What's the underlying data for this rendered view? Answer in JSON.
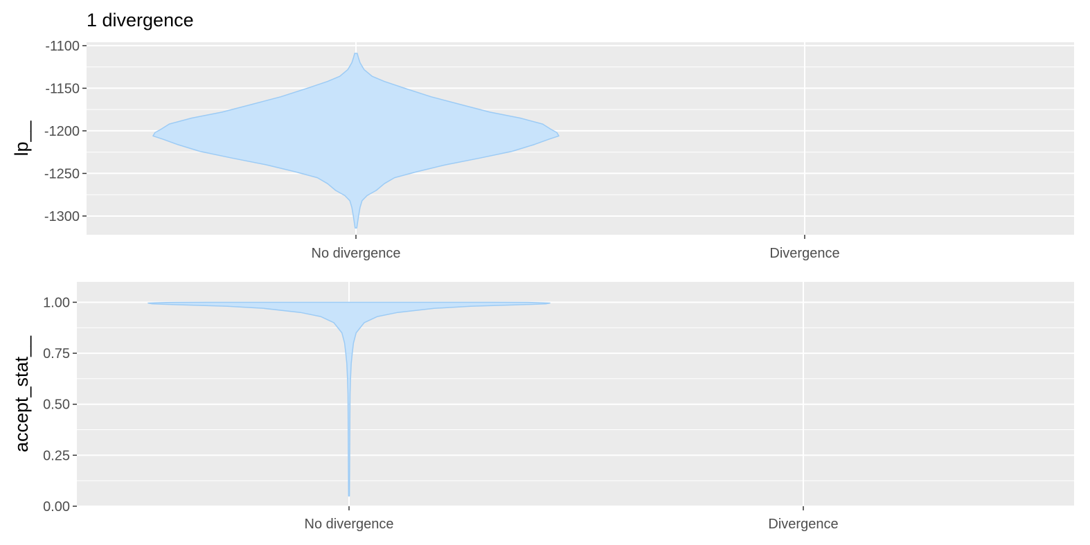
{
  "chart_data": [
    {
      "type": "violin",
      "title": "1 divergence",
      "ylabel": "lp__",
      "xlabel": "",
      "categories": [
        "No divergence",
        "Divergence"
      ],
      "ylim": [
        -1322,
        -1096
      ],
      "yticks": [
        -1100,
        -1150,
        -1200,
        -1250,
        -1300
      ],
      "ytick_labels": [
        "-1100",
        "-1150",
        "-1200",
        "-1250",
        "-1300"
      ],
      "grid": true,
      "fill_color": "#c8e3fb",
      "outline_color": "#9ccbf5",
      "panel_color": "#ebebeb",
      "grid_color": "#ffffff",
      "violins": [
        {
          "category": "No divergence",
          "profile": [
            [
              -1314,
              0.004
            ],
            [
              -1308,
              0.008
            ],
            [
              -1300,
              0.013
            ],
            [
              -1290,
              0.02
            ],
            [
              -1282,
              0.03
            ],
            [
              -1276,
              0.055
            ],
            [
              -1270,
              0.1
            ],
            [
              -1262,
              0.14
            ],
            [
              -1255,
              0.19
            ],
            [
              -1248,
              0.3
            ],
            [
              -1240,
              0.44
            ],
            [
              -1232,
              0.61
            ],
            [
              -1224,
              0.77
            ],
            [
              -1216,
              0.88
            ],
            [
              -1210,
              0.95
            ],
            [
              -1206,
              1.0
            ],
            [
              -1202,
              0.99
            ],
            [
              -1198,
              0.96
            ],
            [
              -1192,
              0.92
            ],
            [
              -1185,
              0.81
            ],
            [
              -1178,
              0.66
            ],
            [
              -1170,
              0.53
            ],
            [
              -1160,
              0.37
            ],
            [
              -1150,
              0.24
            ],
            [
              -1142,
              0.14
            ],
            [
              -1136,
              0.08
            ],
            [
              -1128,
              0.04
            ],
            [
              -1120,
              0.02
            ],
            [
              -1114,
              0.012
            ],
            [
              -1109,
              0.006
            ]
          ]
        }
      ]
    },
    {
      "type": "violin",
      "title": "",
      "ylabel": "accept_stat__",
      "xlabel": "",
      "categories": [
        "No divergence",
        "Divergence"
      ],
      "ylim": [
        0.0,
        1.1
      ],
      "yticks": [
        1.0,
        0.75,
        0.5,
        0.25,
        0.0
      ],
      "ytick_labels": [
        "1.00",
        "0.75",
        "0.50",
        "0.25",
        "0.00"
      ],
      "grid": true,
      "fill_color": "#c8e3fb",
      "outline_color": "#9ccbf5",
      "panel_color": "#ebebeb",
      "grid_color": "#ffffff",
      "violins": [
        {
          "category": "No divergence",
          "profile": [
            [
              0.05,
              0.002
            ],
            [
              0.2,
              0.003
            ],
            [
              0.4,
              0.004
            ],
            [
              0.55,
              0.005
            ],
            [
              0.62,
              0.007
            ],
            [
              0.7,
              0.011
            ],
            [
              0.75,
              0.016
            ],
            [
              0.8,
              0.022
            ],
            [
              0.85,
              0.035
            ],
            [
              0.9,
              0.075
            ],
            [
              0.93,
              0.14
            ],
            [
              0.95,
              0.24
            ],
            [
              0.97,
              0.42
            ],
            [
              0.98,
              0.6
            ],
            [
              0.987,
              0.82
            ],
            [
              0.992,
              0.97
            ],
            [
              0.996,
              0.99
            ],
            [
              0.999,
              0.9
            ],
            [
              1.0,
              0.7
            ]
          ]
        }
      ]
    }
  ]
}
